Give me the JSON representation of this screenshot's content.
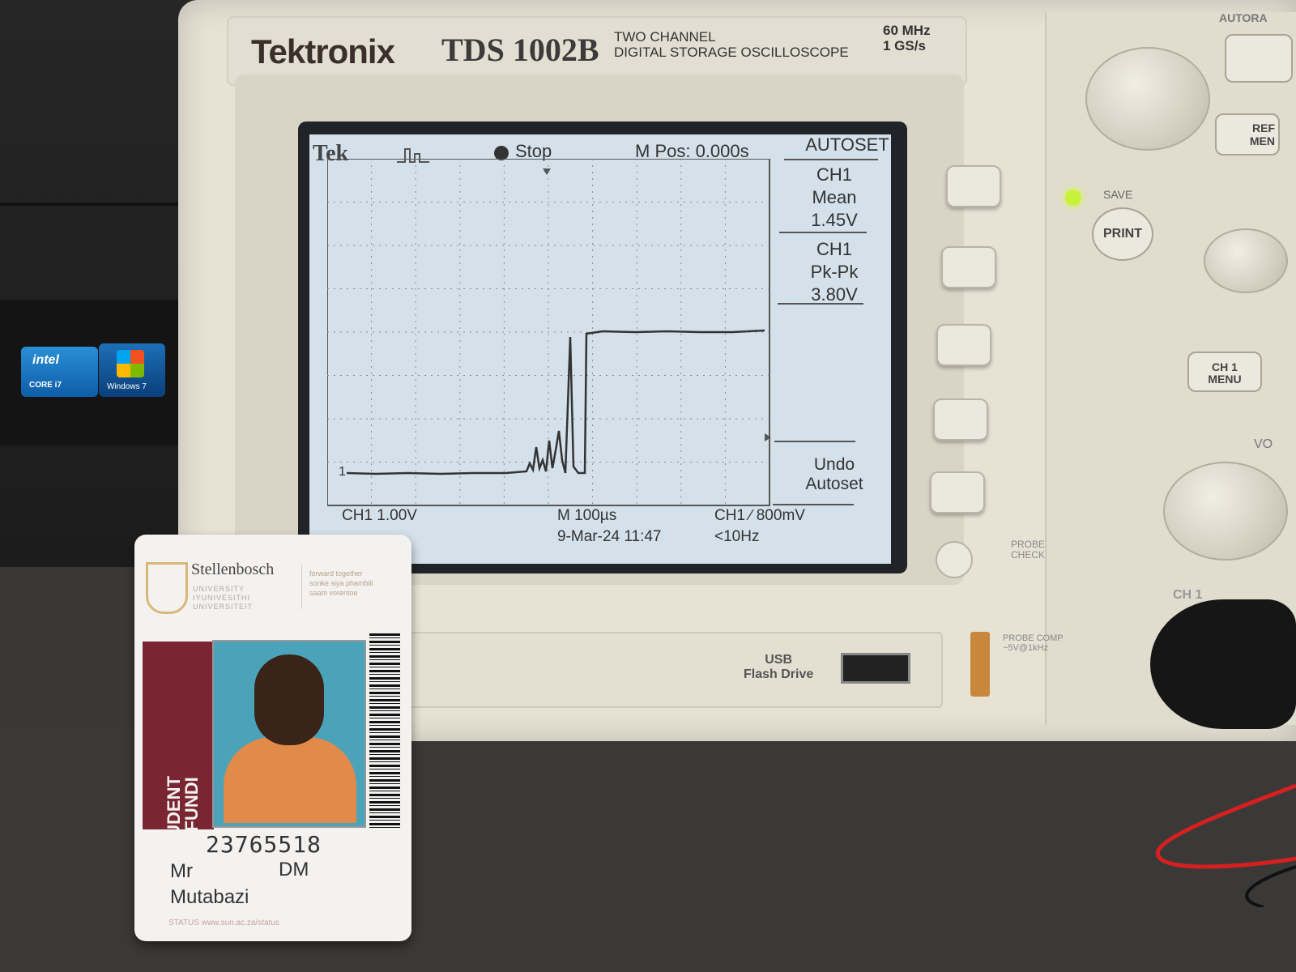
{
  "computer": {
    "intel_badge": "intel",
    "intel_sub": "CORE i7",
    "windows_badge": "Windows 7"
  },
  "scope": {
    "brand": "Tektronix",
    "model": "TDS 1002B",
    "model_desc_1": "TWO CHANNEL",
    "model_desc_2": "DIGITAL STORAGE OSCILLOSCOPE",
    "bandwidth": "60 MHz",
    "sample_rate": "1 GS/s",
    "screen": {
      "logo": "Tek",
      "state": "Stop",
      "m_pos": "M Pos: 0.000s",
      "menu_title": "AUTOSET",
      "mean_ch": "CH1",
      "mean_label": "Mean",
      "mean_value": "1.45V",
      "pk_ch": "CH1",
      "pk_label": "Pk-Pk",
      "pk_value": "3.80V",
      "undo_1": "Undo",
      "undo_2": "Autoset",
      "ch1_scale": "CH1  1.00V",
      "time_scale": "M 100µs",
      "trigger": "CH1 ∕ 800mV",
      "date": "9-Mar-24 11:47",
      "freq": "<10Hz",
      "marker": "1"
    },
    "panel": {
      "autorange": "AUTORA",
      "ref_menu_1": "REF",
      "ref_menu_2": "MEN",
      "save": "SAVE",
      "print": "PRINT",
      "ch1_menu_1": "CH 1",
      "ch1_menu_2": "MENU",
      "volts": "VO",
      "ch1": "CH 1",
      "probe_check_1": "PROBE",
      "probe_check_2": "CHECK",
      "probe_comp_1": "PROBE COMP",
      "probe_comp_2": "~5V@1kHz"
    },
    "usb_1": "USB",
    "usb_2": "Flash Drive"
  },
  "card": {
    "university": "Stellenbosch",
    "sub_1": "UNIVERSITY",
    "sub_2": "IYUNIVESITHI",
    "sub_3": "UNIVERSITEIT",
    "motto_1": "forward together",
    "motto_2": "sonke siya phambili",
    "motto_3": "saam vorentoe",
    "student_1": "STUDENT",
    "student_2": "UMFUNDI",
    "student_number": "23765518",
    "title": "Mr",
    "initials": "DM",
    "surname": "Mutabazi",
    "status": "STATUS  www.sun.ac.za/status"
  }
}
